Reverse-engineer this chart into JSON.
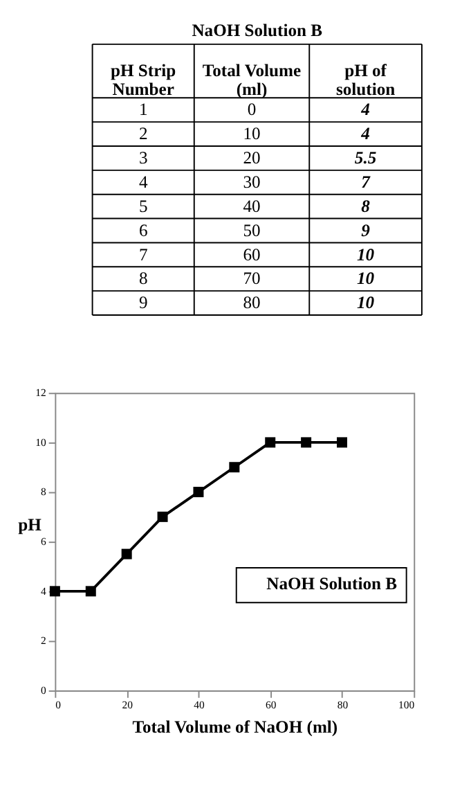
{
  "chart_data": {
    "type": "line",
    "title": "NaOH Solution B",
    "xlabel": "Total Volume of NaOH (ml)",
    "ylabel": "pH",
    "annotations": [
      "pH Strip\nNumber",
      "Total Volume\n(ml)",
      "pH of\nsolution",
      "1",
      "0",
      "4",
      "2",
      "10",
      "4",
      "3",
      "20",
      "5.5",
      "4",
      "30",
      "7",
      "5",
      "40",
      "8",
      "6",
      "50",
      "9",
      "7",
      "60",
      "10",
      "8",
      "70",
      "10",
      "9",
      "80",
      "10"
    ],
    "series": [
      {
        "name": "NaOH Solution B",
        "color": "#000000",
        "x": [
          0,
          10,
          20,
          30,
          40,
          50,
          60,
          70,
          80
        ],
        "values": [
          4,
          4,
          5.5,
          7,
          8,
          9,
          10,
          10,
          10
        ]
      }
    ],
    "xlim": [
      0,
      100
    ],
    "xticks": [
      0,
      20,
      40,
      60,
      80,
      100
    ],
    "ylim": [
      0,
      12
    ],
    "yticks": [
      0,
      2,
      4,
      6,
      8,
      10,
      12
    ],
    "marker": "square",
    "line_style": "solid",
    "legend": "right",
    "grid": false
  }
}
